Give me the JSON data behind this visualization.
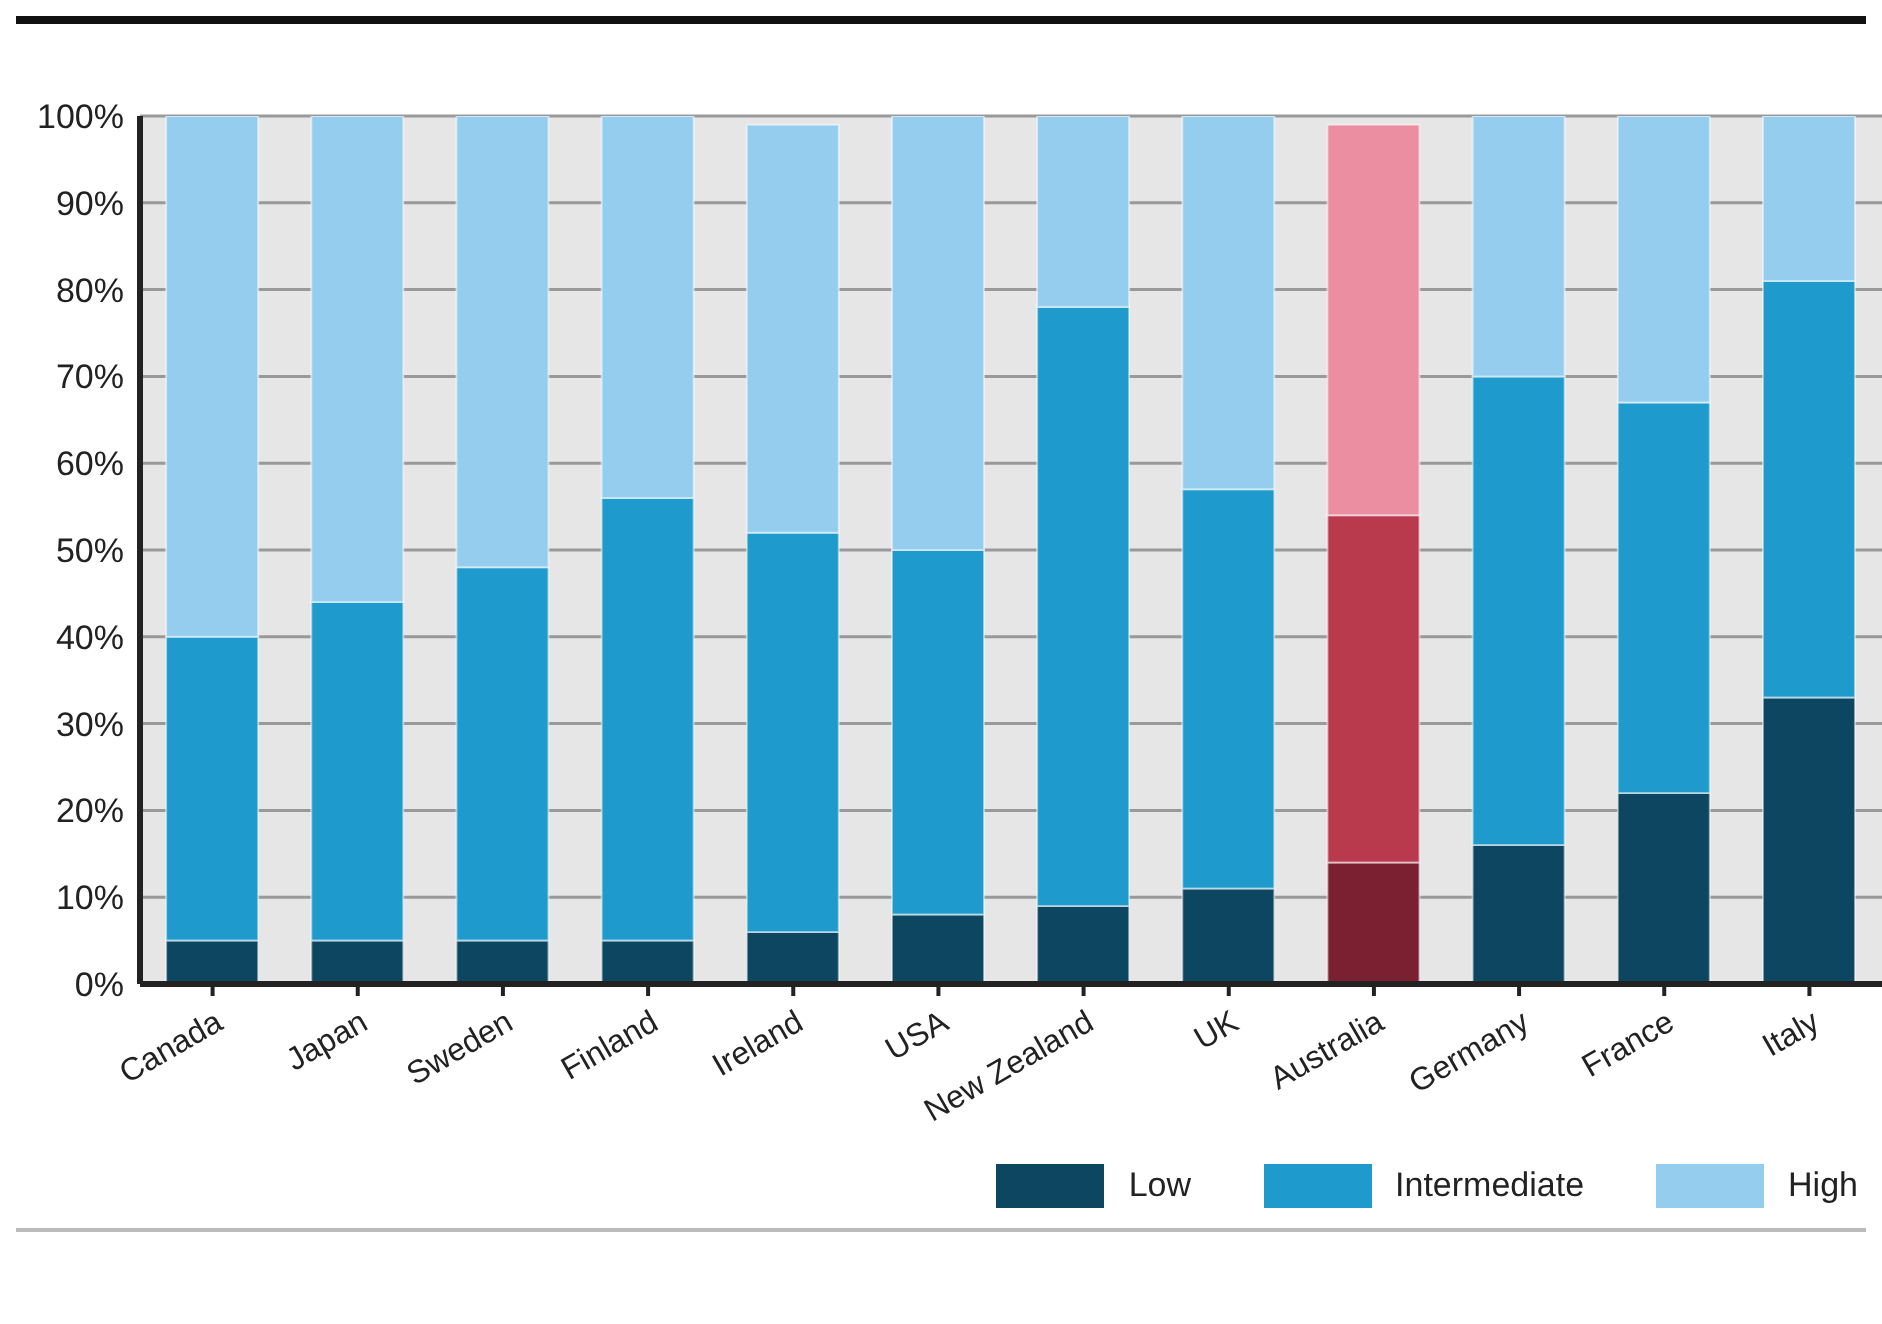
{
  "chart_data": {
    "type": "bar",
    "stacked": true,
    "categories": [
      "Canada",
      "Japan",
      "Sweden",
      "Finland",
      "Ireland",
      "USA",
      "New Zealand",
      "UK",
      "Australia",
      "Germany",
      "France",
      "Italy"
    ],
    "series": [
      {
        "name": "Low",
        "color": "#0d4660",
        "colors": [
          "#0d4660",
          "#0d4660",
          "#0d4660",
          "#0d4660",
          "#0d4660",
          "#0d4660",
          "#0d4660",
          "#0d4660",
          "#7a2030",
          "#0d4660",
          "#0d4660",
          "#0d4660"
        ],
        "values": [
          5,
          5,
          5,
          5,
          6,
          8,
          9,
          11,
          14,
          16,
          22,
          33
        ]
      },
      {
        "name": "Intermediate",
        "color": "#1e9bcc",
        "colors": [
          "#1e9bcc",
          "#1e9bcc",
          "#1e9bcc",
          "#1e9bcc",
          "#1e9bcc",
          "#1e9bcc",
          "#1e9bcc",
          "#1e9bcc",
          "#b83a4c",
          "#1e9bcc",
          "#1e9bcc",
          "#1e9bcc"
        ],
        "values": [
          35,
          39,
          43,
          51,
          46,
          42,
          69,
          46,
          40,
          54,
          45,
          48
        ]
      },
      {
        "name": "High",
        "color": "#94cdee",
        "colors": [
          "#94cdee",
          "#94cdee",
          "#94cdee",
          "#94cdee",
          "#94cdee",
          "#94cdee",
          "#94cdee",
          "#94cdee",
          "#ec8ea2",
          "#94cdee",
          "#94cdee",
          "#94cdee"
        ],
        "values": [
          60,
          56,
          52,
          44,
          47,
          50,
          22,
          43,
          45,
          30,
          33,
          19
        ]
      }
    ],
    "ylim": [
      0,
      100
    ],
    "yticks": [
      {
        "value": 0,
        "label": "0%"
      },
      {
        "value": 10,
        "label": "10%"
      },
      {
        "value": 20,
        "label": "20%"
      },
      {
        "value": 30,
        "label": "30%"
      },
      {
        "value": 40,
        "label": "40%"
      },
      {
        "value": 50,
        "label": "50%"
      },
      {
        "value": 60,
        "label": "60%"
      },
      {
        "value": 70,
        "label": "70%"
      },
      {
        "value": 80,
        "label": "80%"
      },
      {
        "value": 90,
        "label": "90%"
      },
      {
        "value": 100,
        "label": "100%"
      }
    ],
    "grid": "y",
    "legend": "bottom right"
  }
}
